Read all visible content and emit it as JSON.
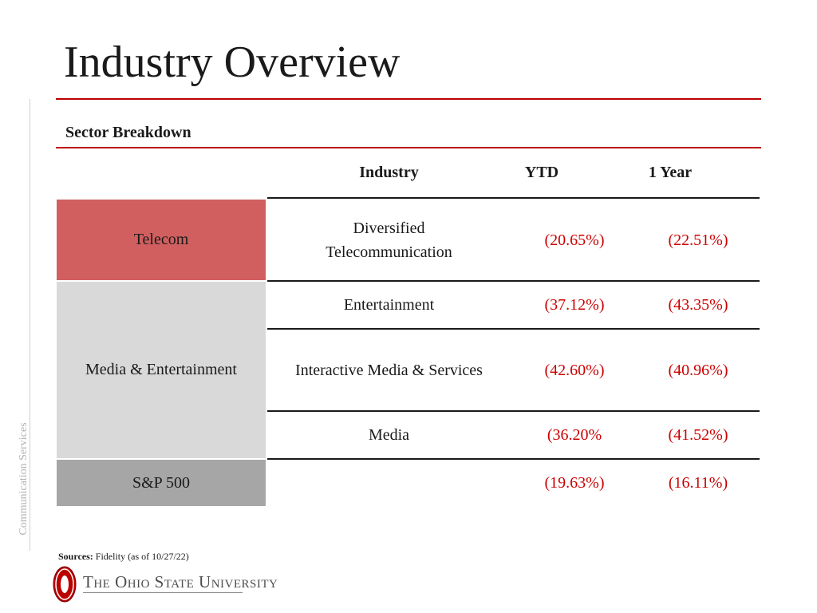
{
  "slide": {
    "title": "Industry Overview",
    "subtitle": "Sector Breakdown",
    "side_label": "Communication Services"
  },
  "table": {
    "headers": {
      "industry": "Industry",
      "ytd": "YTD",
      "one_year": "1 Year"
    },
    "sectors": {
      "telecom": "Telecom",
      "media": "Media & Entertainment",
      "sp500": "S&P 500"
    },
    "rows": [
      {
        "industry_line1": "Diversified",
        "industry_line2": "Telecommunication",
        "ytd": "(20.65%)",
        "one_year": "(22.51%)"
      },
      {
        "industry": "Entertainment",
        "ytd": "(37.12%)",
        "one_year": "(43.35%)"
      },
      {
        "industry": "Interactive Media & Services",
        "ytd": "(42.60%)",
        "one_year": "(40.96%)"
      },
      {
        "industry": "Media",
        "ytd": "(36.20%",
        "one_year": "(41.52%)"
      },
      {
        "industry": "",
        "ytd": "(19.63%)",
        "one_year": "(16.11%)"
      }
    ]
  },
  "footer": {
    "sources_label": "Sources:",
    "sources_text": "Fidelity (as of 10/27/22)",
    "logo_text": "The Ohio State University"
  },
  "colors": {
    "accent_red": "#bb0000",
    "value_red": "#cc0000",
    "telecom_fill": "#d15f5f",
    "media_fill": "#d9d9d9",
    "sp500_fill": "#a6a6a6"
  }
}
